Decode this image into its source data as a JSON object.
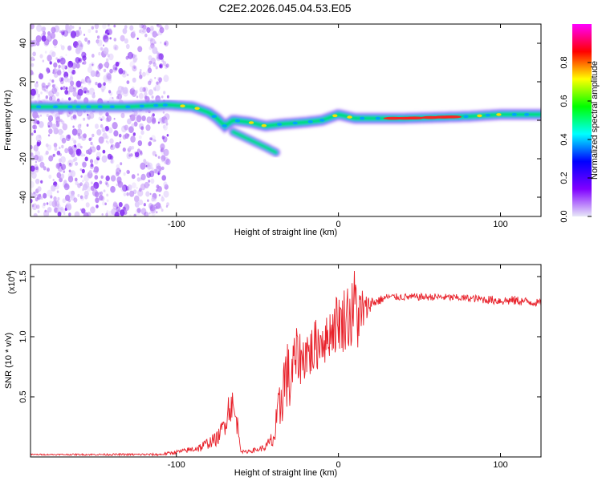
{
  "title": "C2E2.2026.045.04.53.E05",
  "chart_data": [
    {
      "type": "heatmap",
      "xlabel": "Height of straight line (km)",
      "ylabel": "Frequency (Hz)",
      "xlim": [
        -190,
        125
      ],
      "ylim": [
        -50,
        50
      ],
      "xticks": [
        -100,
        0,
        100
      ],
      "yticks": [
        -40,
        -20,
        0,
        20,
        40
      ],
      "ridge": [
        {
          "x": -190,
          "y": 7
        },
        {
          "x": -130,
          "y": 7
        },
        {
          "x": -105,
          "y": 8
        },
        {
          "x": -90,
          "y": 7
        },
        {
          "x": -80,
          "y": 4
        },
        {
          "x": -75,
          "y": 1
        },
        {
          "x": -70,
          "y": -3
        },
        {
          "x": -65,
          "y": 0
        },
        {
          "x": -55,
          "y": -1
        },
        {
          "x": -45,
          "y": -3
        },
        {
          "x": -35,
          "y": -2
        },
        {
          "x": -20,
          "y": -1
        },
        {
          "x": -10,
          "y": 0
        },
        {
          "x": 0,
          "y": 3
        },
        {
          "x": 10,
          "y": 1
        },
        {
          "x": 40,
          "y": 1
        },
        {
          "x": 80,
          "y": 2
        },
        {
          "x": 100,
          "y": 3
        },
        {
          "x": 125,
          "y": 3
        }
      ],
      "branch": [
        {
          "x": -65,
          "y": -6
        },
        {
          "x": -55,
          "y": -10
        },
        {
          "x": -45,
          "y": -14
        },
        {
          "x": -38,
          "y": -17
        }
      ]
    },
    {
      "type": "colorbar",
      "label": "Normalized spectral amplitude",
      "range": [
        0,
        1
      ],
      "ticks": [
        "0.0",
        "0.2",
        "0.4",
        "0.6",
        "0.8"
      ],
      "colors": [
        "#e8e8f8",
        "#8000ff",
        "#0000ff",
        "#00ffff",
        "#00ff00",
        "#ffff00",
        "#ff0000",
        "#ff00ff"
      ]
    },
    {
      "type": "line",
      "xlabel": "Height of straight line (km)",
      "ylabel": "SNR (10 * v/v)",
      "yexp": "(x10",
      "yexp_power": "4",
      "yexp_close": ")",
      "xlim": [
        -190,
        125
      ],
      "ylim": [
        0,
        1.6
      ],
      "xticks": [
        -100,
        0,
        100
      ],
      "yticks": [
        "0.5",
        "1.0",
        "1.5"
      ],
      "series_color": "#e8212a",
      "series": [
        {
          "name": "SNR",
          "x": [
            -190,
            -110,
            -95,
            -85,
            -80,
            -75,
            -72,
            -70,
            -68,
            -66,
            -64,
            -62,
            -60,
            -58,
            -55,
            -50,
            -45,
            -40,
            -37,
            -35,
            -32,
            -30,
            -28,
            -25,
            -22,
            -20,
            -18,
            -15,
            -12,
            -10,
            -8,
            -5,
            -2,
            0,
            2,
            5,
            8,
            10,
            12,
            14,
            15,
            16,
            18,
            20,
            25,
            30,
            40,
            60,
            80,
            100,
            110,
            125
          ],
          "y": [
            0.02,
            0.02,
            0.05,
            0.08,
            0.12,
            0.15,
            0.22,
            0.3,
            0.4,
            0.45,
            0.35,
            0.25,
            0.05,
            0.04,
            0.05,
            0.06,
            0.08,
            0.15,
            0.3,
            0.55,
            0.7,
            0.6,
            0.75,
            0.85,
            0.8,
            0.9,
            0.85,
            0.9,
            0.95,
            1.0,
            0.95,
            1.05,
            1.1,
            1.15,
            1.1,
            1.2,
            1.15,
            1.3,
            1.2,
            1.1,
            1.25,
            1.2,
            1.25,
            1.28,
            1.3,
            1.33,
            1.33,
            1.33,
            1.32,
            1.3,
            1.3,
            1.28
          ],
          "noise": [
            0.005,
            0.01,
            0.02,
            0.04,
            0.05,
            0.06,
            0.08,
            0.12,
            0.15,
            0.15,
            0.12,
            0.08,
            0.02,
            0.01,
            0.02,
            0.02,
            0.03,
            0.1,
            0.25,
            0.3,
            0.3,
            0.3,
            0.25,
            0.25,
            0.2,
            0.25,
            0.2,
            0.25,
            0.2,
            0.2,
            0.2,
            0.2,
            0.25,
            0.25,
            0.25,
            0.3,
            0.3,
            0.3,
            0.35,
            0.3,
            0.25,
            0.15,
            0.1,
            0.06,
            0.04,
            0.03,
            0.03,
            0.03,
            0.03,
            0.04,
            0.04,
            0.03
          ]
        }
      ]
    }
  ]
}
